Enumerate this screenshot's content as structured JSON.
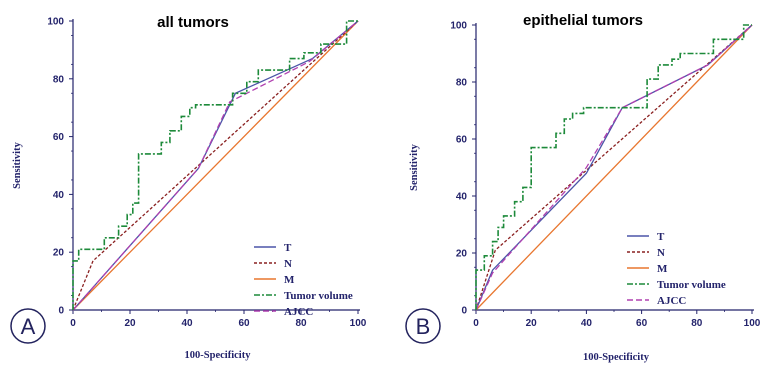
{
  "colors": {
    "T": "#4b55a8",
    "N": "#8a2020",
    "M": "#e8762f",
    "Tumor volume": "#1d8a3a",
    "AJCC": "#b040b0",
    "axis": "#23236b",
    "badge": "#23235e"
  },
  "chart_data": [
    {
      "type": "line",
      "panel_badge": "A",
      "title": "all tumors",
      "xlabel": "100-Specificity",
      "ylabel": "Sensitivity",
      "xlim": [
        0,
        100
      ],
      "ylim": [
        0,
        100
      ],
      "xticks": [
        "0",
        "20",
        "40",
        "60",
        "80",
        "100"
      ],
      "yticks": [
        "0",
        "20",
        "40",
        "60",
        "80",
        "100"
      ],
      "grid": false,
      "legend_position": "bottom-right",
      "series": [
        {
          "name": "T",
          "step": false,
          "dash": "solid",
          "x": [
            0,
            44,
            57,
            84,
            100
          ],
          "y": [
            0,
            49,
            75,
            87,
            100
          ]
        },
        {
          "name": "N",
          "step": false,
          "dash": "short",
          "x": [
            0,
            7,
            100
          ],
          "y": [
            0,
            17,
            100
          ]
        },
        {
          "name": "M",
          "step": false,
          "dash": "solid",
          "x": [
            0,
            100
          ],
          "y": [
            0,
            100
          ]
        },
        {
          "name": "Tumor volume",
          "step": true,
          "dash": "dashdot",
          "x": [
            0,
            0,
            2,
            2,
            11,
            11,
            16,
            16,
            19,
            19,
            21,
            21,
            23,
            23,
            31,
            31,
            34,
            34,
            38,
            38,
            41,
            41,
            43,
            43,
            56,
            56,
            61,
            61,
            65,
            65,
            76,
            76,
            81,
            81,
            87,
            87,
            96,
            96,
            100
          ],
          "y": [
            0,
            17,
            17,
            21,
            21,
            25,
            25,
            29,
            29,
            33,
            33,
            37,
            37,
            54,
            54,
            58,
            58,
            62,
            62,
            67,
            67,
            70,
            70,
            71,
            71,
            75,
            75,
            79,
            79,
            83,
            83,
            87,
            87,
            89,
            89,
            92,
            92,
            100,
            100
          ]
        },
        {
          "name": "AJCC",
          "step": false,
          "dash": "dash",
          "x": [
            0,
            44,
            55,
            83,
            100
          ],
          "y": [
            0,
            49,
            72,
            86,
            100
          ]
        }
      ]
    },
    {
      "type": "line",
      "panel_badge": "B",
      "title": "epithelial tumors",
      "xlabel": "100-Specificity",
      "ylabel": "Sensitivity",
      "xlim": [
        0,
        100
      ],
      "ylim": [
        0,
        100
      ],
      "xticks": [
        "0",
        "20",
        "40",
        "60",
        "80",
        "100"
      ],
      "yticks": [
        "0",
        "20",
        "40",
        "60",
        "80",
        "100"
      ],
      "grid": false,
      "legend_position": "bottom-right",
      "series": [
        {
          "name": "T",
          "step": false,
          "dash": "solid",
          "x": [
            0,
            6,
            40,
            53,
            84,
            100
          ],
          "y": [
            0,
            14,
            48,
            71,
            86,
            100
          ]
        },
        {
          "name": "N",
          "step": false,
          "dash": "short",
          "x": [
            0,
            7,
            100
          ],
          "y": [
            0,
            21,
            100
          ]
        },
        {
          "name": "M",
          "step": false,
          "dash": "solid",
          "x": [
            0,
            100
          ],
          "y": [
            0,
            100
          ]
        },
        {
          "name": "Tumor volume",
          "step": true,
          "dash": "dashdot",
          "x": [
            0,
            0,
            3,
            3,
            6,
            6,
            8,
            8,
            10,
            10,
            14,
            14,
            17,
            17,
            20,
            20,
            29,
            29,
            32,
            32,
            35,
            35,
            39,
            39,
            62,
            62,
            66,
            66,
            71,
            71,
            74,
            74,
            86,
            86,
            97,
            97,
            100
          ],
          "y": [
            0,
            14,
            14,
            19,
            19,
            24,
            24,
            29,
            29,
            33,
            33,
            38,
            38,
            43,
            43,
            57,
            57,
            62,
            62,
            67,
            67,
            69,
            69,
            71,
            71,
            81,
            81,
            86,
            86,
            88,
            88,
            90,
            90,
            95,
            95,
            100,
            100
          ]
        },
        {
          "name": "AJCC",
          "step": false,
          "dash": "dash",
          "x": [
            0,
            6,
            40,
            53,
            84,
            100
          ],
          "y": [
            0,
            13,
            50,
            71,
            86,
            100
          ]
        }
      ]
    }
  ]
}
